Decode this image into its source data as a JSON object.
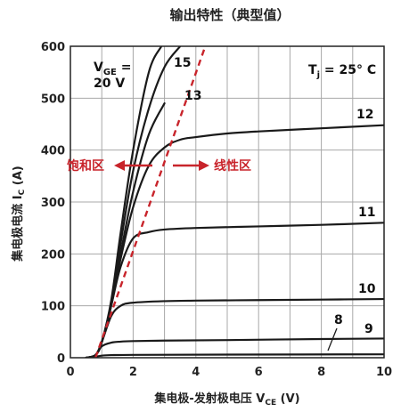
{
  "chart_data": {
    "type": "line",
    "title": "输出特性（典型值）",
    "xlabel": "集电极-发射极电压 V",
    "xlabel_sub": "CE",
    "xlabel_unit": " (V)",
    "ylabel": "集电极电流 I",
    "ylabel_sub": "C",
    "ylabel_unit": " (A)",
    "xlim": [
      0,
      10
    ],
    "ylim": [
      0,
      600
    ],
    "x_ticks": [
      "0",
      "2",
      "4",
      "6",
      "8",
      "10"
    ],
    "y_ticks": [
      "0",
      "100",
      "200",
      "300",
      "400",
      "500",
      "600"
    ],
    "grid": true,
    "temperature_label": {
      "main": "T",
      "sub": "j",
      "rest": " = 25° C"
    },
    "vge_label": {
      "main": "V",
      "sub": "GE",
      "eq": " =",
      "value": "20 V"
    },
    "regions": {
      "saturation": "饱和区",
      "linear": "线性区"
    },
    "series": [
      {
        "name": "20",
        "x": [
          0.5,
          0.8,
          1.0,
          1.3,
          1.6,
          2.0,
          2.5,
          2.9
        ],
        "y": [
          0,
          5,
          30,
          110,
          240,
          400,
          550,
          600
        ]
      },
      {
        "name": "15",
        "x": [
          0.5,
          0.8,
          1.0,
          1.3,
          1.6,
          2.0,
          2.5,
          3.0,
          3.5
        ],
        "y": [
          0,
          5,
          30,
          105,
          220,
          360,
          480,
          560,
          600
        ]
      },
      {
        "name": "13",
        "x": [
          0.5,
          0.8,
          1.0,
          1.3,
          1.6,
          2.0,
          2.5,
          3.0
        ],
        "y": [
          0,
          5,
          30,
          100,
          200,
          320,
          430,
          490
        ]
      },
      {
        "name": "12",
        "x": [
          0.5,
          0.8,
          1.0,
          1.3,
          1.6,
          2.0,
          2.5,
          3.0,
          3.5,
          4.0,
          5.0,
          6.0,
          8.0,
          10.0
        ],
        "y": [
          0,
          5,
          30,
          100,
          190,
          290,
          370,
          405,
          420,
          425,
          432,
          436,
          442,
          448
        ]
      },
      {
        "name": "11",
        "x": [
          0.5,
          0.8,
          1.0,
          1.3,
          1.6,
          2.0,
          2.5,
          3.0,
          4.0,
          6.0,
          8.0,
          10.0
        ],
        "y": [
          0,
          5,
          30,
          100,
          175,
          230,
          242,
          247,
          250,
          253,
          256,
          260
        ]
      },
      {
        "name": "10",
        "x": [
          0.5,
          0.8,
          1.0,
          1.3,
          1.6,
          2.0,
          3.0,
          4.0,
          6.0,
          8.0,
          10.0
        ],
        "y": [
          0,
          5,
          30,
          80,
          100,
          106,
          109,
          110,
          111,
          112,
          113
        ]
      },
      {
        "name": "9",
        "x": [
          0.5,
          0.8,
          1.0,
          1.3,
          1.6,
          2.0,
          3.0,
          5.0,
          8.0,
          10.0
        ],
        "y": [
          0,
          5,
          22,
          29,
          31,
          32,
          33,
          34,
          36,
          37
        ]
      },
      {
        "name": "8",
        "x": [
          0.5,
          0.8,
          1.0,
          1.3,
          2.0,
          5.0,
          10.0
        ],
        "y": [
          0,
          2,
          4,
          5,
          5.5,
          6,
          6.5
        ]
      }
    ],
    "boundary_line": {
      "x": [
        0.8,
        4.3
      ],
      "y": [
        0,
        600
      ]
    }
  },
  "colors": {
    "curve": "#1a1a1a",
    "boundary": "#c8242b",
    "grid": "#a8a8a8",
    "axis": "#222222"
  }
}
